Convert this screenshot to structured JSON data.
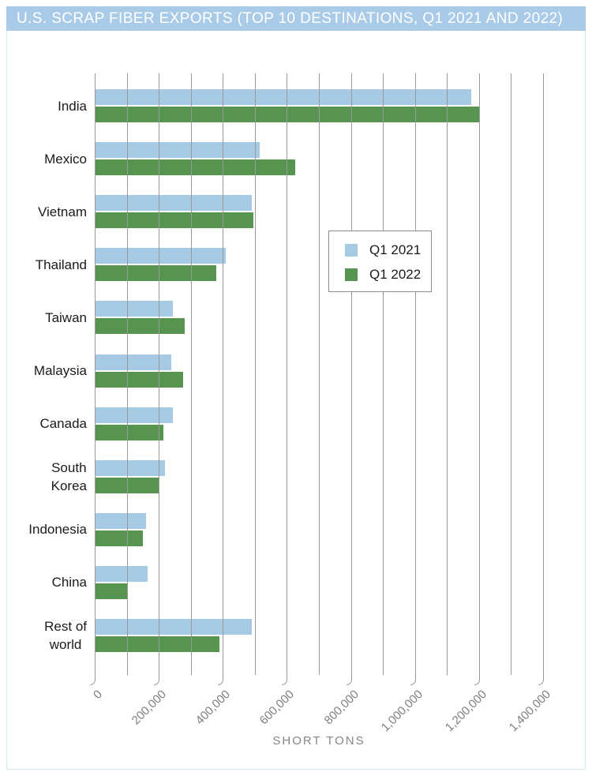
{
  "header": {
    "title": "U.S. SCRAP FIBER EXPORTS (TOP 10 DESTINATIONS, Q1 2021 AND 2022)",
    "background": "#A9CBE7",
    "text_color": "#FFFFFF"
  },
  "frame": {
    "border_color": "#D8E6F4",
    "background": "#FFFFFF"
  },
  "chart_data": {
    "type": "bar",
    "orientation": "horizontal",
    "title": "U.S. SCRAP FIBER EXPORTS (TOP 10 DESTINATIONS, Q1 2021 AND 2022)",
    "xlabel": "SHORT TONS",
    "ylabel": "",
    "xlim": [
      0,
      1400000
    ],
    "grid": true,
    "gridline_interval": 100000,
    "gridline_color": "#999999",
    "tick_label_interval": 200000,
    "x_tick_labels": [
      "0",
      "200,000",
      "400,000",
      "600,000",
      "800,000",
      "1,000,000",
      "1,200,000",
      "1,400,000"
    ],
    "categories": [
      "India",
      "Mexico",
      "Vietnam",
      "Thailand",
      "Taiwan",
      "Malaysia",
      "Canada",
      "South Korea",
      "Indonesia",
      "China",
      "Rest of world"
    ],
    "category_display_lines": [
      [
        "India"
      ],
      [
        "Mexico"
      ],
      [
        "Vietnam"
      ],
      [
        "Thailand"
      ],
      [
        "Taiwan"
      ],
      [
        "Malaysia"
      ],
      [
        "Canada"
      ],
      [
        "South",
        "Korea"
      ],
      [
        "Indonesia"
      ],
      [
        "China"
      ],
      [
        "Rest of",
        "world"
      ]
    ],
    "series": [
      {
        "name": "Q1 2021",
        "color": "#A7CAE4",
        "values": [
          1175000,
          515000,
          490000,
          410000,
          245000,
          240000,
          245000,
          220000,
          160000,
          165000,
          490000
        ]
      },
      {
        "name": "Q1 2022",
        "color": "#57944F",
        "values": [
          1200000,
          625000,
          495000,
          380000,
          280000,
          275000,
          215000,
          200000,
          150000,
          100000,
          390000
        ]
      }
    ],
    "legend": {
      "position": "center-right",
      "border_color": "#8C8C8C",
      "background": "#FFFFFF",
      "entries": [
        "Q1 2021",
        "Q1 2022"
      ]
    },
    "axis_colors": {
      "tick_label_color": "#7D7D7D",
      "axis_title_color": "#868686",
      "category_label_color": "#1A1A1A"
    }
  }
}
